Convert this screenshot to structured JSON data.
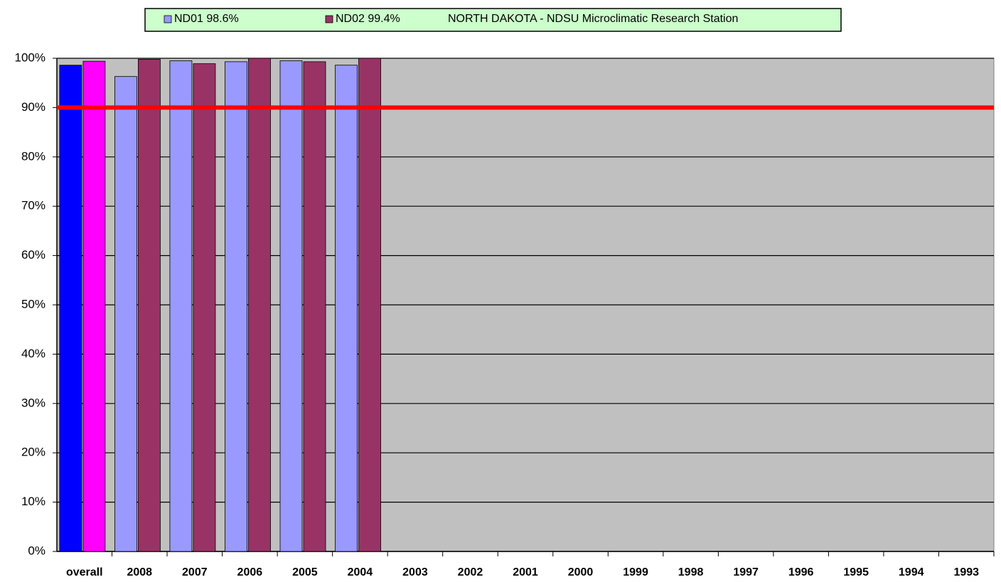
{
  "chart_data": {
    "type": "bar",
    "title": "NORTH DAKOTA - NDSU Microclimatic Research Station",
    "categories": [
      "overall",
      "2008",
      "2007",
      "2006",
      "2005",
      "2004",
      "2003",
      "2002",
      "2001",
      "2000",
      "1999",
      "1998",
      "1997",
      "1996",
      "1995",
      "1994",
      "1993"
    ],
    "series": [
      {
        "name": "ND01  98.6%",
        "color": "#9999ff",
        "first_color": "#0000ff",
        "values": [
          98.6,
          96.3,
          99.5,
          99.3,
          99.5,
          98.6,
          null,
          null,
          null,
          null,
          null,
          null,
          null,
          null,
          null,
          null,
          null
        ]
      },
      {
        "name": "ND02  99.4%",
        "color": "#993366",
        "first_color": "#ff00ff",
        "values": [
          99.4,
          99.8,
          98.9,
          100,
          99.3,
          100,
          null,
          null,
          null,
          null,
          null,
          null,
          null,
          null,
          null,
          null,
          null
        ]
      }
    ],
    "ylim": [
      0,
      100
    ],
    "yticks": [
      {
        "value": 0,
        "label": "0%"
      },
      {
        "value": 10,
        "label": "10%"
      },
      {
        "value": 20,
        "label": "20%"
      },
      {
        "value": 30,
        "label": "30%"
      },
      {
        "value": 40,
        "label": "40%"
      },
      {
        "value": 50,
        "label": "50%"
      },
      {
        "value": 60,
        "label": "60%"
      },
      {
        "value": 70,
        "label": "70%"
      },
      {
        "value": 80,
        "label": "80%"
      },
      {
        "value": 90,
        "label": "90%"
      },
      {
        "value": 100,
        "label": "100%"
      }
    ],
    "grid": true,
    "plot_background": "#c0c0c0",
    "legend_background": "#ccffcc",
    "reference_line": {
      "value": 90,
      "color": "#ff0000"
    }
  }
}
